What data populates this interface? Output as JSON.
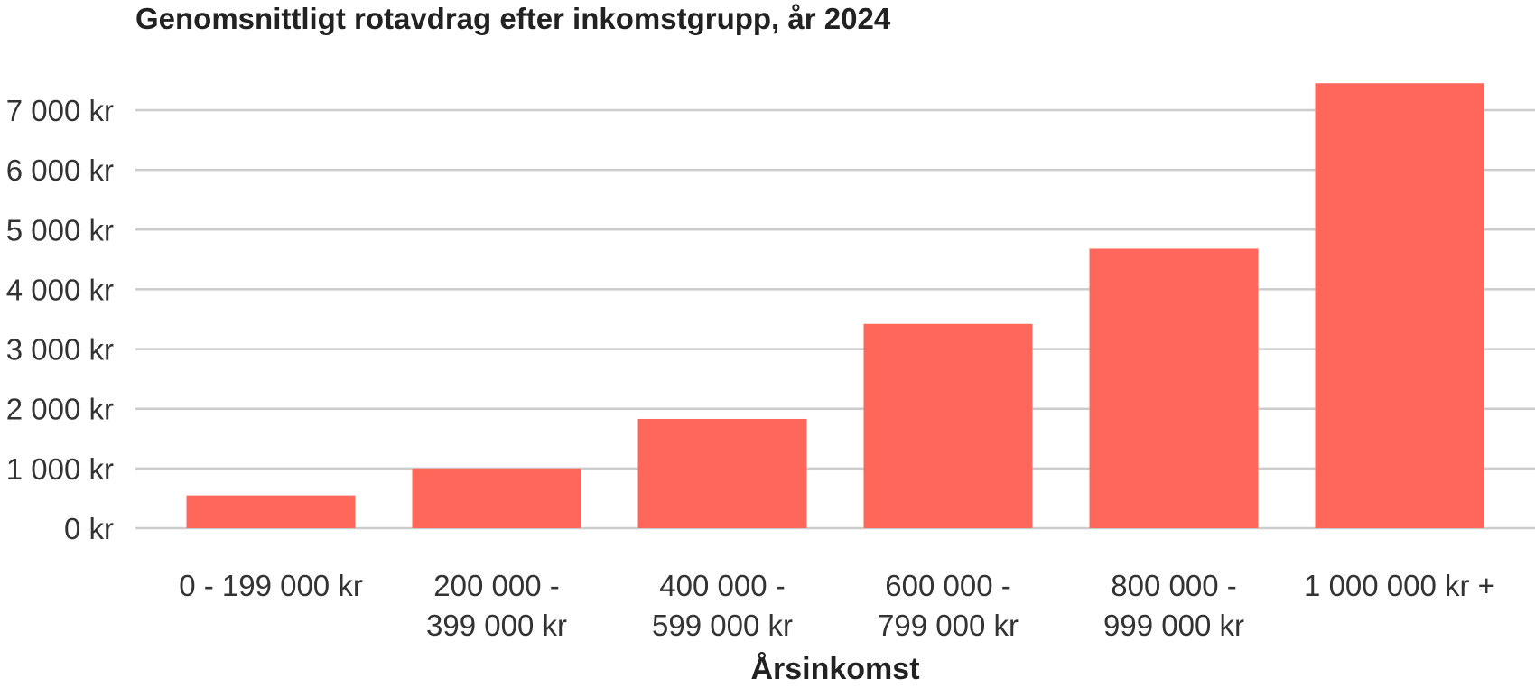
{
  "chart_data": {
    "type": "bar",
    "title": "Genomsnittligt rotavdrag efter inkomstgrupp, år 2024",
    "xlabel": "Årsinkomst",
    "ylabel": "",
    "categories": [
      [
        "0 - 199 000 kr"
      ],
      [
        "200 000 -",
        "399 000 kr"
      ],
      [
        "400 000 -",
        "599 000 kr"
      ],
      [
        "600 000 -",
        "799 000 kr"
      ],
      [
        "800 000 -",
        "999 000 kr"
      ],
      [
        "1 000 000 kr +"
      ]
    ],
    "values": [
      550,
      1000,
      1830,
      3420,
      4680,
      7450
    ],
    "ylim": [
      0,
      7000
    ],
    "y_ticks": [
      {
        "value": 0,
        "label": "0 kr"
      },
      {
        "value": 1000,
        "label": "1 000 kr"
      },
      {
        "value": 2000,
        "label": "2 000 kr"
      },
      {
        "value": 3000,
        "label": "3 000 kr"
      },
      {
        "value": 4000,
        "label": "4 000 kr"
      },
      {
        "value": 5000,
        "label": "5 000 kr"
      },
      {
        "value": 6000,
        "label": "6 000 kr"
      },
      {
        "value": 7000,
        "label": "7 000 kr"
      }
    ],
    "grid": true,
    "legend": "none",
    "bar_color": "#ff675b",
    "grid_color": "#cccccc"
  }
}
